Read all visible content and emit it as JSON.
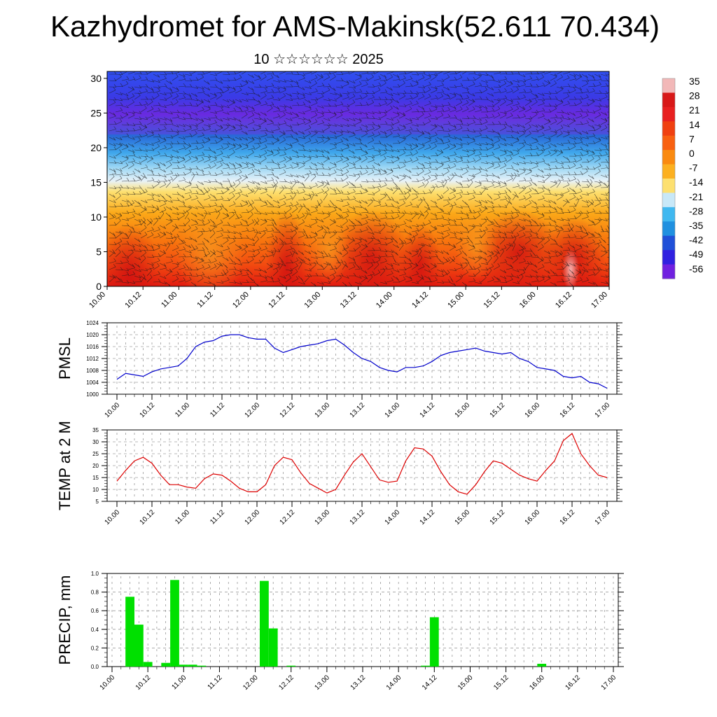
{
  "title": "Kazhydromet for AMS-Makinsk(52.611 70.434)",
  "subtitle": "10 ☆☆☆☆☆☆ 2025",
  "colorbar": {
    "labels": [
      "35",
      "28",
      "21",
      "14",
      "7",
      "0",
      "-7",
      "-14",
      "-21",
      "-28",
      "-35",
      "-42",
      "-49",
      "-56"
    ],
    "colors": [
      "#f2b8b8",
      "#d81818",
      "#e82020",
      "#f04010",
      "#f86010",
      "#fa8a10",
      "#fcb020",
      "#fde070",
      "#c8e8f8",
      "#40b8f0",
      "#2090e0",
      "#2050d8",
      "#3020e0",
      "#7020e0"
    ]
  },
  "chart_data": [
    {
      "type": "heatmap",
      "description_label": "Temperature cross-section with wind barbs",
      "x_ticks": [
        "10.00",
        "10.12",
        "11.00",
        "11.12",
        "12.00",
        "12.12",
        "13.00",
        "13.12",
        "14.00",
        "14.12",
        "15.00",
        "15.12",
        "16.00",
        "16.12",
        "17.00"
      ],
      "y_ticks": [
        0,
        5,
        10,
        15,
        20,
        25,
        30
      ],
      "ylim": [
        0,
        31
      ],
      "colorbar_range": [
        -56,
        35
      ]
    },
    {
      "type": "line",
      "ylabel": "PMSL",
      "x_ticks": [
        "10.00",
        "10.12",
        "11.00",
        "11.12",
        "12.00",
        "12.12",
        "13.00",
        "13.12",
        "14.00",
        "14.12",
        "15.00",
        "15.12",
        "16.00",
        "16.12",
        "17.00"
      ],
      "y_ticks": [
        1000,
        1004,
        1008,
        1012,
        1016,
        1020,
        1024
      ],
      "ylim": [
        1000,
        1024
      ],
      "color": "#0000cc",
      "values": [
        1005,
        1007,
        1006.5,
        1006,
        1007.5,
        1008.5,
        1009,
        1009.5,
        1012,
        1016,
        1017.5,
        1018,
        1019.5,
        1020,
        1020,
        1019,
        1018.5,
        1018.5,
        1015.5,
        1014,
        1015,
        1016,
        1016.5,
        1017,
        1018,
        1018.5,
        1016.5,
        1014,
        1012,
        1011,
        1009,
        1008,
        1007.5,
        1009,
        1009,
        1009.5,
        1011,
        1013,
        1014,
        1014.5,
        1015,
        1015.5,
        1014.5,
        1014,
        1013.5,
        1014,
        1012,
        1011,
        1009,
        1008.5,
        1008,
        1006,
        1005.5,
        1006,
        1004,
        1003.5,
        1002
      ]
    },
    {
      "type": "line",
      "ylabel": "TEMP at 2 M",
      "x_ticks": [
        "10.00",
        "10.12",
        "11.00",
        "11.12",
        "12.00",
        "12.12",
        "13.00",
        "13.12",
        "14.00",
        "14.12",
        "15.00",
        "15.12",
        "16.00",
        "16.12",
        "17.00"
      ],
      "y_ticks": [
        5,
        10,
        15,
        20,
        25,
        30,
        35
      ],
      "ylim": [
        5,
        35
      ],
      "color": "#dd0000",
      "values": [
        13.5,
        18,
        22,
        23.5,
        21,
        16,
        12,
        12,
        11,
        10.5,
        14.5,
        16.5,
        16,
        13.5,
        10.5,
        9,
        9,
        12,
        20,
        23.5,
        22.5,
        17,
        12.5,
        10.5,
        8.5,
        10,
        16,
        21.5,
        25,
        19.5,
        14,
        13,
        13.5,
        22,
        27.5,
        27,
        24,
        17.5,
        12,
        9,
        8,
        12,
        17.5,
        22,
        21,
        18.5,
        16,
        14.5,
        13.5,
        18,
        22,
        30.5,
        33.5,
        25,
        20,
        16,
        15
      ]
    },
    {
      "type": "bar",
      "ylabel": "PRECIP, mm",
      "x_ticks": [
        "10.00",
        "10.12",
        "11.00",
        "11.12",
        "12.00",
        "12.12",
        "13.00",
        "13.12",
        "14.00",
        "14.12",
        "15.00",
        "15.12",
        "16.00",
        "16.12",
        "17.00"
      ],
      "y_ticks": [
        "0.0",
        "0.2",
        "0.4",
        "0.6",
        "0.8",
        "1.0"
      ],
      "ylim": [
        0,
        1.0
      ],
      "color": "#00e000",
      "values": [
        0,
        0,
        0.75,
        0.45,
        0.05,
        0,
        0.04,
        0.93,
        0.02,
        0.02,
        0.01,
        0,
        0,
        0,
        0,
        0,
        0,
        0.92,
        0.41,
        0,
        0.01,
        0,
        0,
        0,
        0,
        0,
        0,
        0,
        0,
        0,
        0,
        0,
        0,
        0,
        0,
        0.01,
        0.53,
        0,
        0,
        0,
        0,
        0,
        0,
        0,
        0,
        0,
        0,
        0,
        0.03,
        0,
        0,
        0,
        0,
        0,
        0,
        0,
        0
      ]
    }
  ]
}
